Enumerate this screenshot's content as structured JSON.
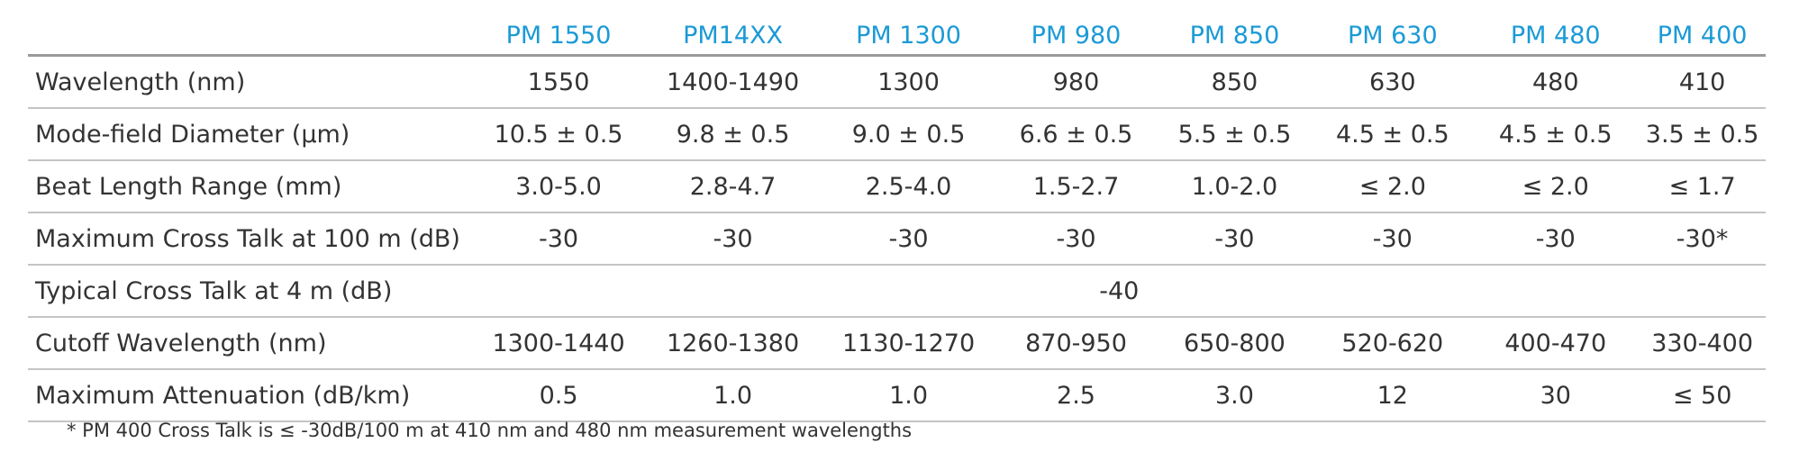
{
  "colors": {
    "header_text": "#1b9ad6",
    "body_text": "#333333",
    "rule": "#c4c4c4"
  },
  "table": {
    "columns": [
      "PM 1550",
      "PM14XX",
      "PM 1300",
      "PM 980",
      "PM 850",
      "PM 630",
      "PM 480",
      "PM 400"
    ],
    "rows": [
      {
        "label": "Wavelength (nm)",
        "values": [
          "1550",
          "1400-1490",
          "1300",
          "980",
          "850",
          "630",
          "480",
          "410"
        ]
      },
      {
        "label": "Mode-field Diameter (µm)",
        "values": [
          "10.5 ± 0.5",
          "9.8 ± 0.5",
          "9.0 ± 0.5",
          "6.6 ± 0.5",
          "5.5 ± 0.5",
          "4.5 ± 0.5",
          "4.5 ± 0.5",
          "3.5 ± 0.5"
        ]
      },
      {
        "label": "Beat Length Range (mm)",
        "values": [
          "3.0-5.0",
          "2.8-4.7",
          "2.5-4.0",
          "1.5-2.7",
          "1.0-2.0",
          "≤ 2.0",
          "≤ 2.0",
          "≤ 1.7"
        ]
      },
      {
        "label": "Maximum Cross Talk at 100 m (dB)",
        "values": [
          "-30",
          "-30",
          "-30",
          "-30",
          "-30",
          "-30",
          "-30",
          "-30*"
        ]
      },
      {
        "label": "Typical Cross Talk at 4 m (dB)",
        "merged_value": "-40"
      },
      {
        "label": "Cutoff Wavelength (nm)",
        "values": [
          "1300-1440",
          "1260-1380",
          "1130-1270",
          "870-950",
          "650-800",
          "520-620",
          "400-470",
          "330-400"
        ]
      },
      {
        "label": "Maximum Attenuation (dB/km)",
        "values": [
          "0.5",
          "1.0",
          "1.0",
          "2.5",
          "3.0",
          "12",
          "30",
          "≤ 50"
        ]
      }
    ]
  },
  "footnote": "* PM 400 Cross Talk is ≤ -30dB/100 m at 410 nm and 480 nm measurement wavelengths"
}
